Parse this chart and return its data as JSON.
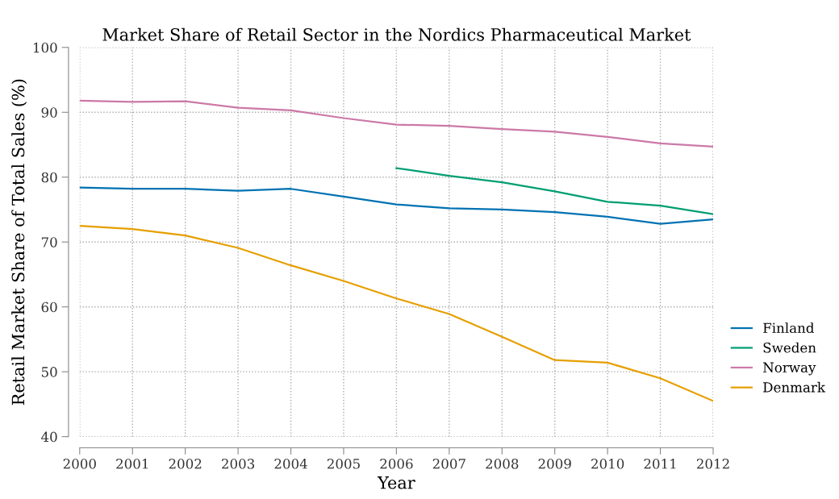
{
  "chart_data": {
    "type": "line",
    "title": "Market Share of Retail Sector in the Nordics Pharmaceutical Market",
    "xlabel": "Year",
    "ylabel": "Retail Market Share of Total Sales (%)",
    "x": [
      2000,
      2001,
      2002,
      2003,
      2004,
      2005,
      2006,
      2007,
      2008,
      2009,
      2010,
      2011,
      2012
    ],
    "series": [
      {
        "name": "Finland",
        "color": "#0072b2",
        "values": [
          78.4,
          78.2,
          78.2,
          77.9,
          78.2,
          77.0,
          75.8,
          75.2,
          75.0,
          74.6,
          73.9,
          72.8,
          73.5
        ]
      },
      {
        "name": "Sweden",
        "color": "#009e73",
        "values": [
          null,
          null,
          null,
          null,
          null,
          null,
          81.4,
          80.2,
          79.2,
          77.8,
          76.2,
          75.6,
          74.3
        ]
      },
      {
        "name": "Norway",
        "color": "#cc79a7",
        "values": [
          91.8,
          91.6,
          91.7,
          90.7,
          90.3,
          89.1,
          88.1,
          87.9,
          87.4,
          87.0,
          86.2,
          85.2,
          84.7
        ]
      },
      {
        "name": "Denmark",
        "color": "#e69f00",
        "values": [
          72.5,
          72.0,
          71.0,
          69.1,
          66.4,
          64.0,
          61.3,
          58.9,
          55.4,
          51.8,
          51.4,
          49.0,
          45.5
        ]
      }
    ],
    "xlim": [
      2000,
      2012
    ],
    "xticks": [
      2000,
      2001,
      2002,
      2003,
      2004,
      2005,
      2006,
      2007,
      2008,
      2009,
      2010,
      2011,
      2012
    ],
    "ylim": [
      40,
      100
    ],
    "yticks": [
      40,
      50,
      60,
      70,
      80,
      90,
      100
    ],
    "grid": true,
    "legend": "right",
    "marker": "none",
    "line_style": "solid"
  }
}
